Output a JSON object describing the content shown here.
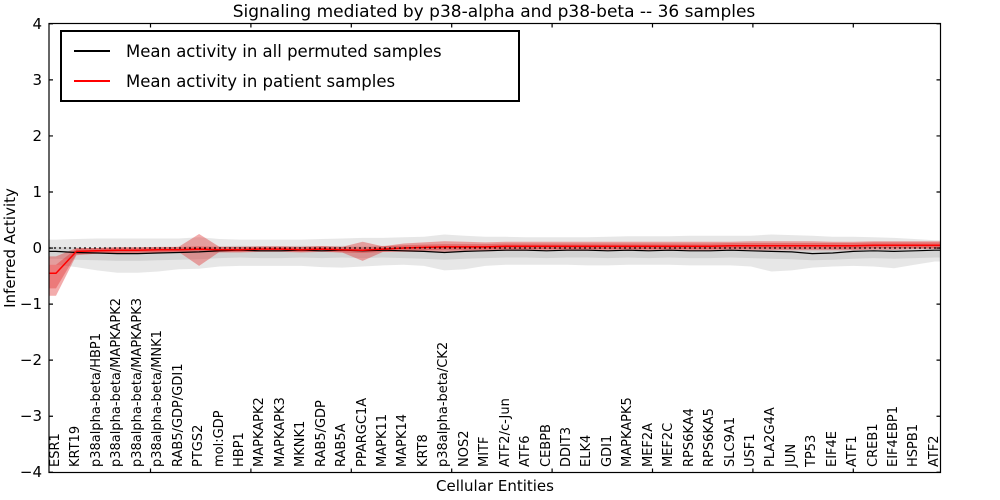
{
  "chart_data": {
    "type": "line",
    "title": "Signaling mediated by p38-alpha and p38-beta -- 36 samples",
    "xlabel": "Cellular Entities",
    "ylabel": "Inferred Activity",
    "ylim": [
      -4,
      4
    ],
    "ytick_labels": [
      "4",
      "3",
      "2",
      "1",
      "0",
      "−1",
      "−2",
      "−3",
      "−4"
    ],
    "grid": "off",
    "legend": {
      "position": "upper-left",
      "items": [
        {
          "label": "Mean activity in all permuted samples",
          "color": "#000000"
        },
        {
          "label": "Mean activity in patient samples",
          "color": "#ff0000"
        }
      ]
    },
    "zero_line": {
      "y": 0,
      "style": "dotted",
      "color": "#000000"
    },
    "categories": [
      "ESR1",
      "KRT19",
      "p38alpha-beta/HBP1",
      "p38alpha-beta/MAPKAPK2",
      "p38alpha-beta/MAPKAPK3",
      "p38alpha-beta/MNK1",
      "RAB5/GDP/GDI1",
      "PTGS2",
      "mol:GDP",
      "HBP1",
      "MAPKAPK2",
      "MAPKAPK3",
      "MKNK1",
      "RAB5/GDP",
      "RAB5A",
      "PPARGC1A",
      "MAPK11",
      "MAPK14",
      "KRT8",
      "p38alpha-beta/CK2",
      "NOS2",
      "MITF",
      "ATF2/c-Jun",
      "ATF6",
      "CEBPB",
      "DDIT3",
      "ELK4",
      "GDI1",
      "MAPKAPK5",
      "MEF2A",
      "MEF2C",
      "RPS6KA4",
      "RPS6KA5",
      "SLC9A1",
      "USF1",
      "PLA2G4A",
      "JUN",
      "TP53",
      "EIF4E",
      "ATF1",
      "CREB1",
      "EIF4EBP1",
      "HSPB1",
      "ATF2"
    ],
    "series": [
      {
        "name": "Mean activity in all permuted samples",
        "color": "#000000",
        "values": [
          -0.06,
          -0.08,
          -0.09,
          -0.1,
          -0.1,
          -0.09,
          -0.08,
          -0.07,
          -0.05,
          -0.04,
          -0.05,
          -0.05,
          -0.04,
          -0.05,
          -0.04,
          -0.05,
          -0.04,
          -0.05,
          -0.06,
          -0.08,
          -0.06,
          -0.05,
          -0.04,
          -0.04,
          -0.05,
          -0.04,
          -0.04,
          -0.05,
          -0.04,
          -0.05,
          -0.04,
          -0.05,
          -0.05,
          -0.04,
          -0.05,
          -0.06,
          -0.07,
          -0.1,
          -0.09,
          -0.06,
          -0.05,
          -0.06,
          -0.05,
          -0.04
        ]
      },
      {
        "name": "Mean activity in patient samples",
        "color": "#ff0000",
        "values": [
          -0.45,
          -0.06,
          -0.05,
          -0.04,
          -0.04,
          -0.03,
          -0.03,
          -0.02,
          -0.03,
          -0.03,
          -0.02,
          -0.02,
          -0.03,
          -0.02,
          -0.03,
          -0.04,
          -0.02,
          0.0,
          0.01,
          0.02,
          0.02,
          0.02,
          0.03,
          0.03,
          0.03,
          0.03,
          0.03,
          0.03,
          0.03,
          0.03,
          0.03,
          0.03,
          0.03,
          0.04,
          0.04,
          0.04,
          0.04,
          0.04,
          0.04,
          0.04,
          0.05,
          0.05,
          0.05,
          0.05
        ]
      }
    ],
    "bands": [
      {
        "name": "permuted-range-outer",
        "color": "#787878",
        "opacity": 0.18,
        "upper": [
          0.15,
          0.16,
          0.17,
          0.17,
          0.17,
          0.17,
          0.17,
          0.19,
          0.16,
          0.15,
          0.15,
          0.15,
          0.15,
          0.16,
          0.17,
          0.18,
          0.18,
          0.19,
          0.2,
          0.24,
          0.22,
          0.2,
          0.2,
          0.19,
          0.19,
          0.19,
          0.19,
          0.2,
          0.21,
          0.21,
          0.21,
          0.22,
          0.22,
          0.22,
          0.22,
          0.24,
          0.23,
          0.22,
          0.2,
          0.2,
          0.19,
          0.18,
          0.16,
          0.14
        ],
        "lower": [
          -0.3,
          -0.34,
          -0.4,
          -0.44,
          -0.44,
          -0.42,
          -0.38,
          -0.37,
          -0.33,
          -0.32,
          -0.32,
          -0.32,
          -0.32,
          -0.34,
          -0.35,
          -0.33,
          -0.31,
          -0.3,
          -0.32,
          -0.4,
          -0.38,
          -0.32,
          -0.3,
          -0.3,
          -0.3,
          -0.3,
          -0.31,
          -0.31,
          -0.3,
          -0.3,
          -0.3,
          -0.31,
          -0.31,
          -0.31,
          -0.33,
          -0.42,
          -0.4,
          -0.35,
          -0.33,
          -0.32,
          -0.33,
          -0.36,
          -0.3,
          -0.24
        ]
      },
      {
        "name": "permuted-range-inner",
        "color": "#787878",
        "opacity": 0.18,
        "upper": [
          0.02,
          0.01,
          -0.01,
          -0.02,
          -0.02,
          -0.01,
          0.0,
          0.01,
          0.03,
          0.04,
          0.03,
          0.03,
          0.04,
          0.03,
          0.04,
          0.03,
          0.04,
          0.03,
          0.02,
          0.0,
          0.02,
          0.03,
          0.04,
          0.04,
          0.03,
          0.04,
          0.04,
          0.03,
          0.04,
          0.03,
          0.04,
          0.03,
          0.03,
          0.04,
          0.03,
          0.02,
          0.01,
          -0.01,
          0.0,
          0.02,
          0.03,
          0.02,
          0.03,
          0.04
        ],
        "lower": [
          -0.19,
          -0.21,
          -0.22,
          -0.23,
          -0.23,
          -0.22,
          -0.21,
          -0.2,
          -0.18,
          -0.17,
          -0.18,
          -0.18,
          -0.17,
          -0.18,
          -0.17,
          -0.18,
          -0.17,
          -0.18,
          -0.19,
          -0.21,
          -0.19,
          -0.18,
          -0.17,
          -0.17,
          -0.18,
          -0.17,
          -0.17,
          -0.18,
          -0.17,
          -0.18,
          -0.17,
          -0.18,
          -0.18,
          -0.17,
          -0.18,
          -0.19,
          -0.2,
          -0.22,
          -0.21,
          -0.19,
          -0.18,
          -0.19,
          -0.18,
          -0.17
        ]
      },
      {
        "name": "patient-range-outer",
        "color": "#e03030",
        "opacity": 0.4,
        "upper": [
          -0.15,
          0.0,
          0.0,
          0.01,
          0.01,
          0.01,
          0.02,
          0.25,
          0.02,
          0.02,
          0.02,
          0.02,
          0.02,
          0.03,
          0.02,
          0.11,
          0.03,
          0.08,
          0.1,
          0.12,
          0.11,
          0.1,
          0.11,
          0.11,
          0.11,
          0.11,
          0.11,
          0.11,
          0.11,
          0.11,
          0.11,
          0.11,
          0.11,
          0.11,
          0.12,
          0.12,
          0.12,
          0.12,
          0.11,
          0.11,
          0.12,
          0.12,
          0.12,
          0.12
        ],
        "lower": [
          -0.85,
          -0.13,
          -0.1,
          -0.09,
          -0.08,
          -0.08,
          -0.07,
          -0.32,
          -0.07,
          -0.07,
          -0.06,
          -0.06,
          -0.07,
          -0.06,
          -0.08,
          -0.23,
          -0.07,
          -0.07,
          -0.07,
          -0.07,
          -0.06,
          -0.06,
          -0.05,
          -0.05,
          -0.05,
          -0.05,
          -0.05,
          -0.05,
          -0.05,
          -0.05,
          -0.05,
          -0.05,
          -0.05,
          -0.04,
          -0.04,
          -0.04,
          -0.04,
          -0.04,
          -0.04,
          -0.04,
          -0.03,
          -0.03,
          -0.02,
          -0.02
        ]
      },
      {
        "name": "patient-range-inner",
        "color": "#e03030",
        "opacity": 0.4,
        "upper": [
          -0.3,
          -0.01,
          0.0,
          0.01,
          0.01,
          0.02,
          0.02,
          0.03,
          0.02,
          0.02,
          0.03,
          0.03,
          0.02,
          0.03,
          0.02,
          0.01,
          0.03,
          0.05,
          0.06,
          0.07,
          0.07,
          0.07,
          0.08,
          0.08,
          0.08,
          0.08,
          0.08,
          0.08,
          0.08,
          0.08,
          0.08,
          0.08,
          0.08,
          0.09,
          0.09,
          0.09,
          0.09,
          0.09,
          0.09,
          0.09,
          0.1,
          0.1,
          0.1,
          0.1
        ],
        "lower": [
          -0.72,
          -0.11,
          -0.1,
          -0.09,
          -0.09,
          -0.08,
          -0.08,
          -0.07,
          -0.08,
          -0.08,
          -0.07,
          -0.07,
          -0.08,
          -0.07,
          -0.08,
          -0.09,
          -0.07,
          -0.05,
          -0.04,
          -0.03,
          -0.03,
          -0.03,
          -0.02,
          -0.02,
          -0.02,
          -0.02,
          -0.02,
          -0.02,
          -0.02,
          -0.02,
          -0.02,
          -0.02,
          -0.02,
          -0.01,
          -0.01,
          -0.01,
          -0.01,
          -0.01,
          -0.01,
          -0.01,
          0.0,
          0.0,
          0.0,
          0.0
        ]
      }
    ]
  }
}
